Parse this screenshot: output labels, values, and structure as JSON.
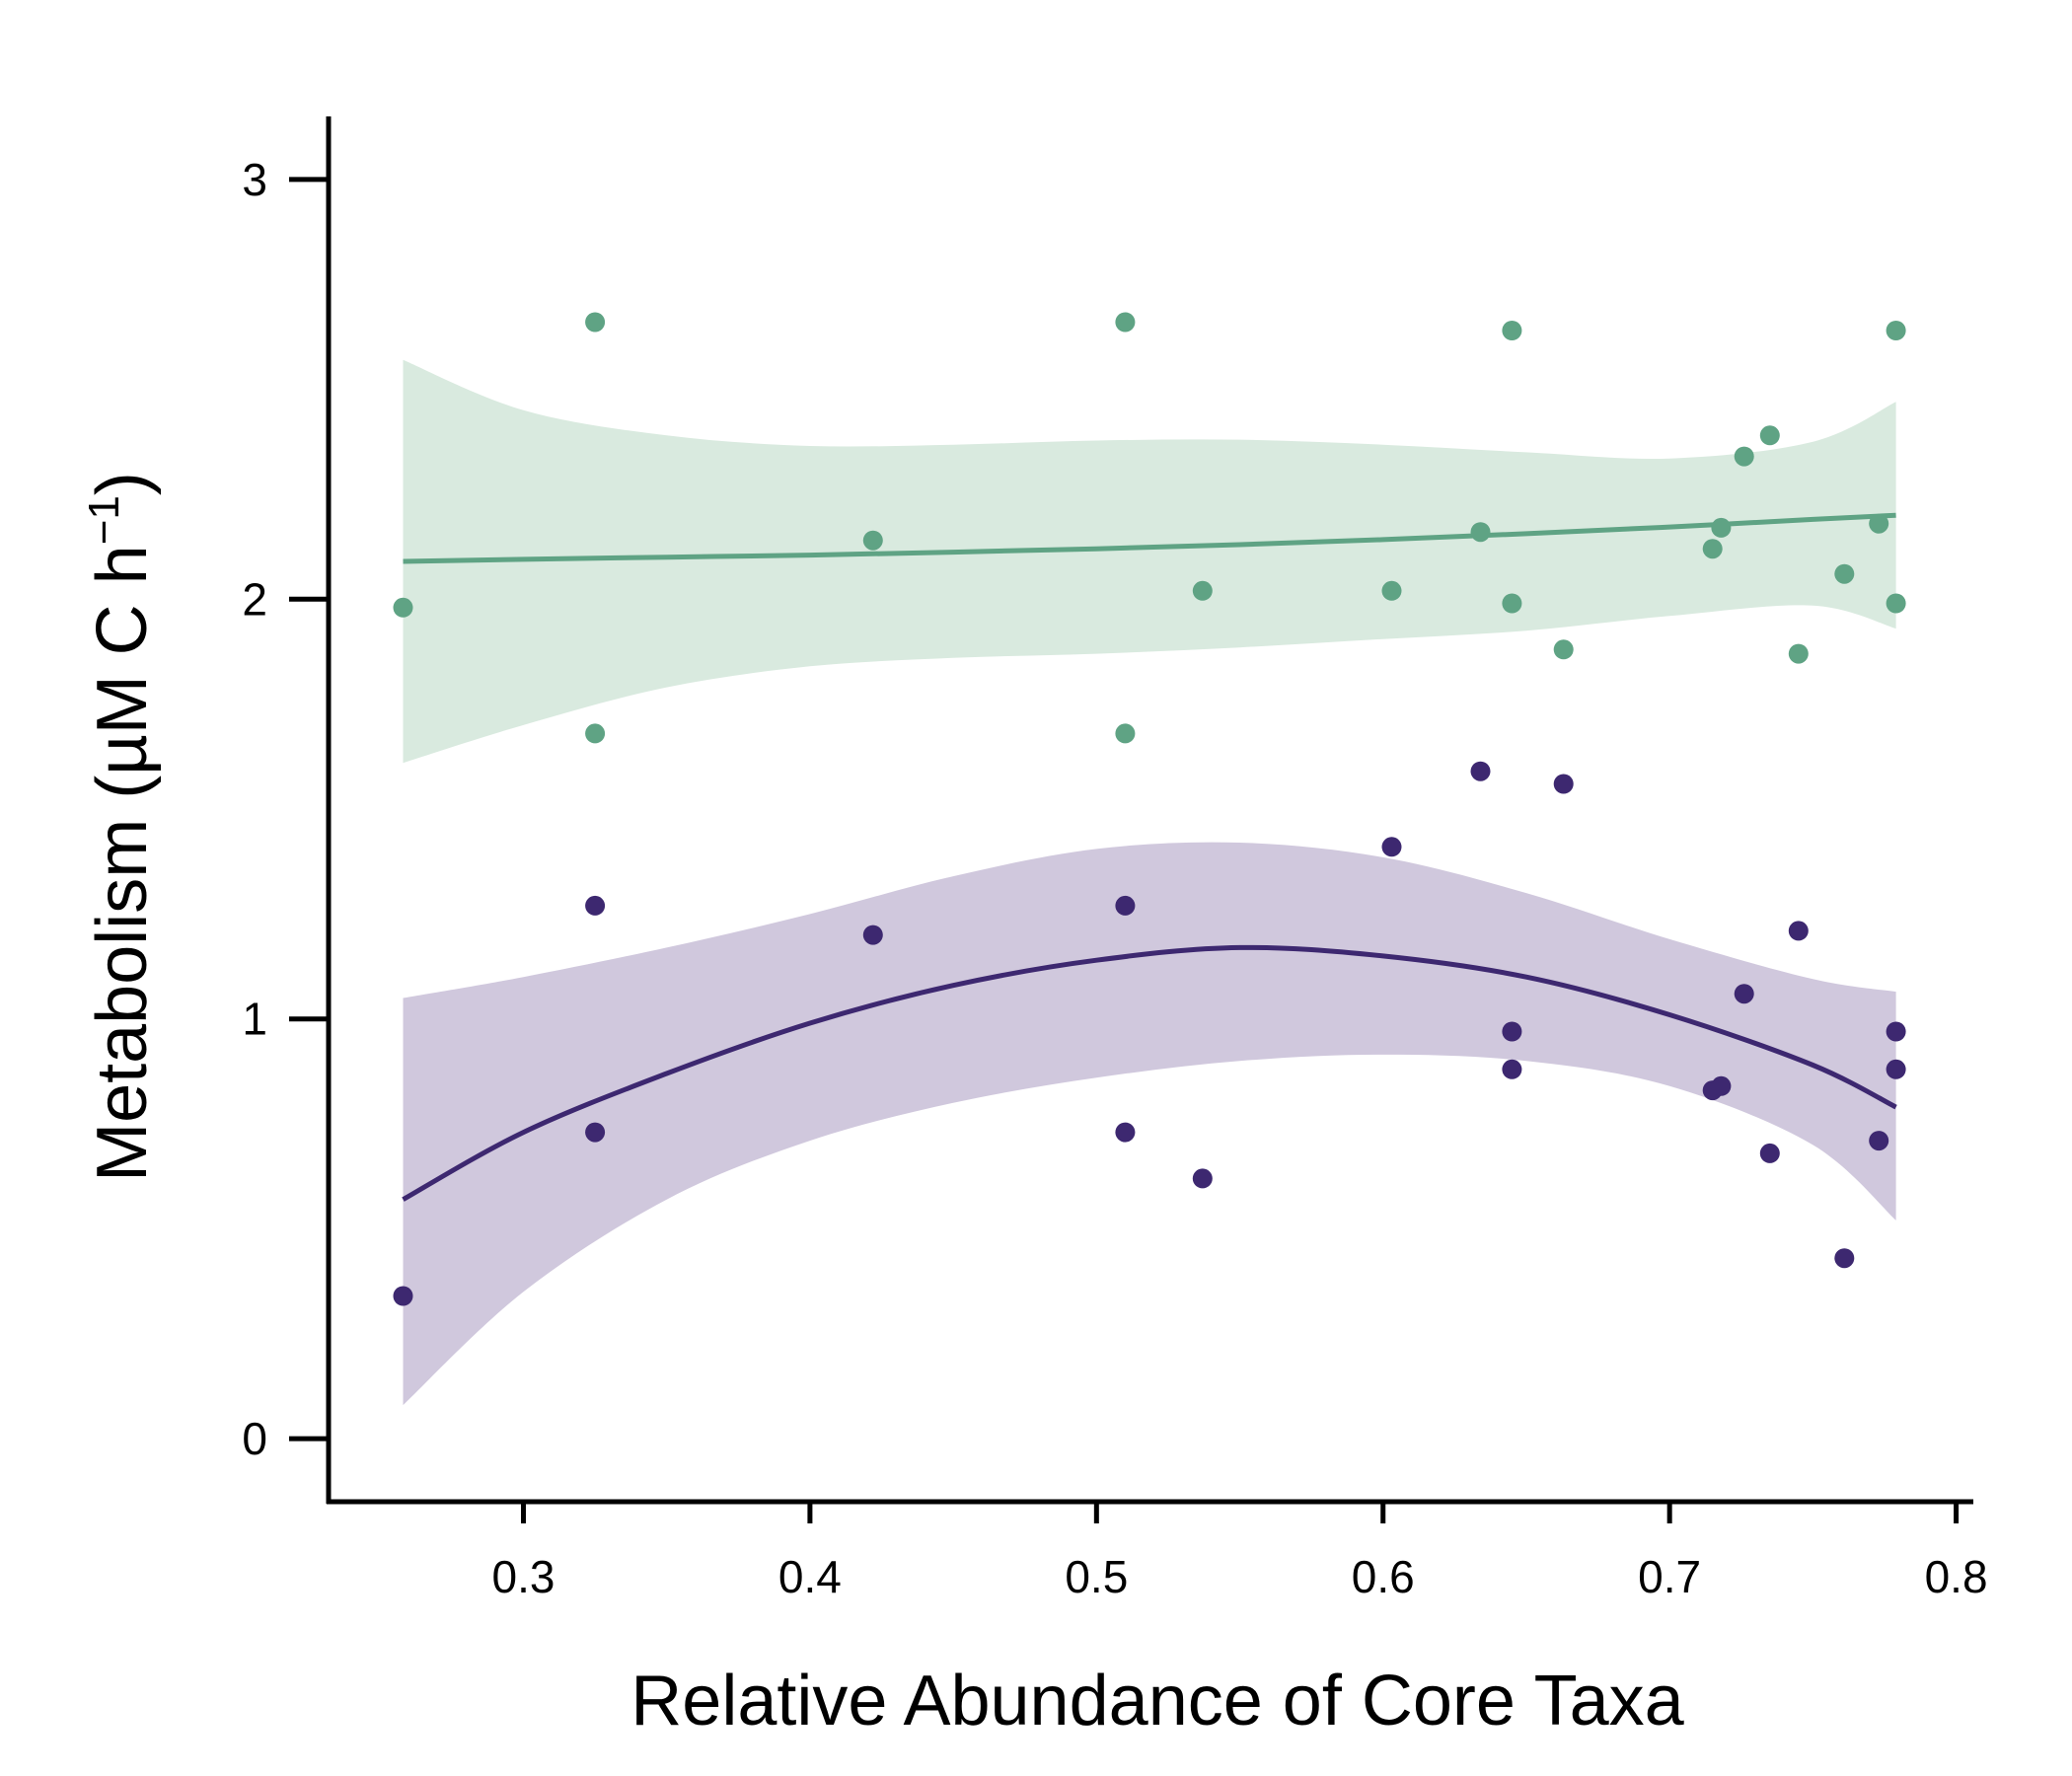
{
  "chart_data": {
    "type": "scatter",
    "title": "",
    "xlabel": "Relative Abundance of Core Taxa",
    "ylabel_main": "Metabolism (",
    "ylabel_mu": "µ",
    "ylabel_units": "M C h",
    "ylabel_sup": "−1",
    "ylabel_close": ")",
    "xlim": [
      0.232,
      0.806
    ],
    "ylim": [
      -0.15,
      3.15
    ],
    "xticks": [
      0.3,
      0.4,
      0.5,
      0.6,
      0.7,
      0.8
    ],
    "xtick_labels": [
      "0.3",
      "0.4",
      "0.5",
      "0.6",
      "0.7",
      "0.8"
    ],
    "yticks": [
      0,
      1,
      2,
      3
    ],
    "ytick_labels": [
      "0",
      "1",
      "2",
      "3"
    ],
    "legend": "none",
    "series": [
      {
        "name": "green series",
        "color": "#5fa384",
        "band_color": "#d9eadf",
        "points": [
          [
            0.258,
            1.98
          ],
          [
            0.325,
            2.66
          ],
          [
            0.325,
            1.68
          ],
          [
            0.422,
            2.14
          ],
          [
            0.51,
            2.66
          ],
          [
            0.51,
            1.68
          ],
          [
            0.537,
            2.02
          ],
          [
            0.603,
            2.02
          ],
          [
            0.634,
            2.16
          ],
          [
            0.645,
            2.64
          ],
          [
            0.645,
            1.99
          ],
          [
            0.663,
            1.88
          ],
          [
            0.715,
            2.12
          ],
          [
            0.718,
            2.17
          ],
          [
            0.726,
            2.34
          ],
          [
            0.735,
            2.39
          ],
          [
            0.745,
            1.87
          ],
          [
            0.761,
            2.06
          ],
          [
            0.773,
            2.18
          ],
          [
            0.779,
            2.64
          ],
          [
            0.779,
            1.99
          ]
        ],
        "fit_x": [
          0.258,
          0.3,
          0.35,
          0.4,
          0.45,
          0.5,
          0.55,
          0.6,
          0.65,
          0.7,
          0.75,
          0.779
        ],
        "fit_y": [
          2.09,
          2.095,
          2.1,
          2.105,
          2.112,
          2.12,
          2.13,
          2.142,
          2.156,
          2.172,
          2.19,
          2.2
        ],
        "ci_upper": [
          2.57,
          2.45,
          2.39,
          2.365,
          2.368,
          2.378,
          2.38,
          2.368,
          2.35,
          2.335,
          2.375,
          2.47
        ],
        "ci_lower": [
          1.61,
          1.7,
          1.79,
          1.84,
          1.86,
          1.87,
          1.885,
          1.905,
          1.925,
          1.96,
          1.985,
          1.93
        ]
      },
      {
        "name": "purple series",
        "color": "#3d2870",
        "band_color": "#d0c8dd",
        "points": [
          [
            0.258,
            0.34
          ],
          [
            0.325,
            1.27
          ],
          [
            0.325,
            0.73
          ],
          [
            0.422,
            1.2
          ],
          [
            0.51,
            1.27
          ],
          [
            0.51,
            0.73
          ],
          [
            0.537,
            0.62
          ],
          [
            0.603,
            1.41
          ],
          [
            0.634,
            1.59
          ],
          [
            0.645,
            0.97
          ],
          [
            0.645,
            0.88
          ],
          [
            0.663,
            1.56
          ],
          [
            0.715,
            0.83
          ],
          [
            0.718,
            0.84
          ],
          [
            0.726,
            1.06
          ],
          [
            0.735,
            0.68
          ],
          [
            0.745,
            1.21
          ],
          [
            0.761,
            0.43
          ],
          [
            0.773,
            0.71
          ],
          [
            0.779,
            0.97
          ],
          [
            0.779,
            0.88
          ]
        ],
        "fit_x": [
          0.258,
          0.3,
          0.35,
          0.4,
          0.45,
          0.5,
          0.55,
          0.6,
          0.65,
          0.7,
          0.75,
          0.779
        ],
        "fit_y": [
          0.57,
          0.73,
          0.87,
          0.99,
          1.08,
          1.14,
          1.17,
          1.15,
          1.1,
          1.01,
          0.89,
          0.79
        ],
        "ci_upper": [
          1.05,
          1.1,
          1.17,
          1.25,
          1.34,
          1.405,
          1.42,
          1.385,
          1.3,
          1.19,
          1.095,
          1.065
        ],
        "ci_lower": [
          0.08,
          0.35,
          0.57,
          0.71,
          0.8,
          0.86,
          0.9,
          0.915,
          0.9,
          0.84,
          0.7,
          0.52
        ]
      }
    ]
  }
}
